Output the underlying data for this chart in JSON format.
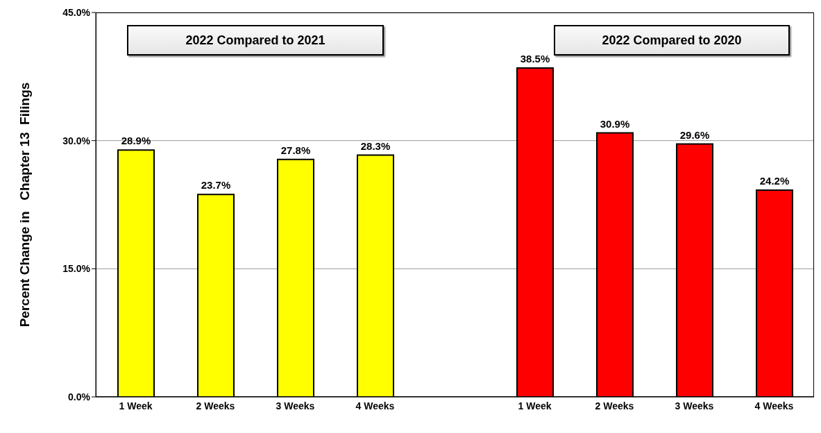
{
  "chart_data": {
    "type": "bar",
    "ylabel": "Percent Change in   Chapter 13  Filings",
    "categories": [
      "1 Week",
      "2 Weeks",
      "3 Weeks",
      "4 Weeks",
      null,
      "1 Week",
      "2 Weeks",
      "3 Weeks",
      "4 Weeks"
    ],
    "values": [
      28.9,
      23.7,
      27.8,
      28.3,
      null,
      38.5,
      30.9,
      29.6,
      24.2
    ],
    "value_labels": [
      "28.9%",
      "23.7%",
      "27.8%",
      "28.3%",
      null,
      "38.5%",
      "30.9%",
      "29.6%",
      "24.2%"
    ],
    "colors": [
      "#ffff00",
      "#ffff00",
      "#ffff00",
      "#ffff00",
      "#ffff00",
      "#ff0000",
      "#ff0000",
      "#ff0000",
      "#ff0000"
    ],
    "ylim": [
      0,
      45
    ],
    "yticks": [
      {
        "value": 0,
        "label": "0.0%"
      },
      {
        "value": 15,
        "label": "15.0%"
      },
      {
        "value": 30,
        "label": "30.0%"
      },
      {
        "value": 45,
        "label": "45.0%"
      }
    ],
    "grid": "y",
    "annotations": [
      "2022 Compared to 2021",
      "2022 Compared to 2020"
    ]
  }
}
